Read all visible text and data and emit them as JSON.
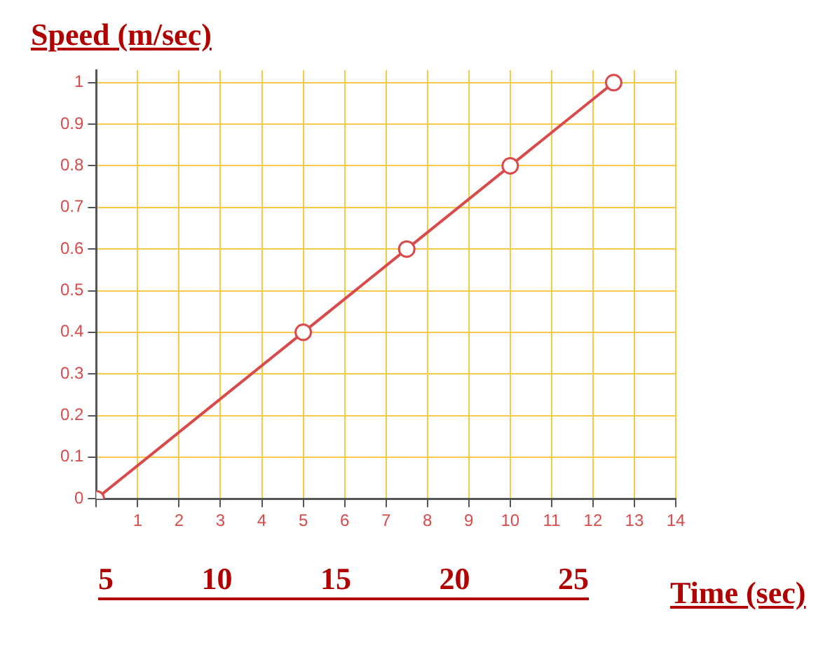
{
  "chart_data": {
    "type": "line",
    "ylabel": "Speed (m/sec)",
    "xlabel": "Time (sec)",
    "annotations": [
      "5",
      "10",
      "15",
      "20",
      "25"
    ],
    "x": [
      0,
      5,
      7.5,
      10,
      12.5
    ],
    "series": [
      {
        "color": "#d94a4a",
        "values": [
          0,
          0.4,
          0.6,
          0.8,
          1
        ]
      }
    ],
    "xlim": [
      0,
      14
    ],
    "xticks": [
      {
        "value": 0,
        "label": null
      },
      1,
      2,
      3,
      4,
      5,
      6,
      7,
      8,
      9,
      10,
      11,
      12,
      13,
      14
    ],
    "ylim": [
      0,
      1.03
    ],
    "yticks": [
      0,
      0.1,
      0.2,
      0.3,
      0.4,
      0.5,
      0.6,
      0.7,
      0.8,
      0.9,
      1
    ],
    "grid": true,
    "legend": false,
    "marker": "circle",
    "line_style": "solid"
  }
}
